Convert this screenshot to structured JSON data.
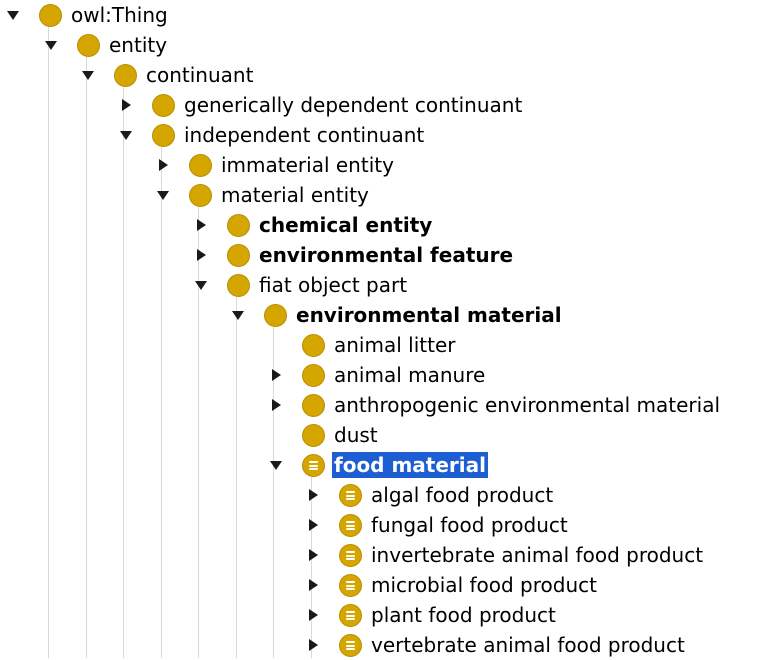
{
  "colors": {
    "class_icon": "#d5a500",
    "selection_background": "#1d5fd2",
    "selection_text": "#ffffff",
    "tree_lines": "#d9d9d9"
  },
  "tree": {
    "nodes": [
      {
        "label": "owl:Thing",
        "depth": 0,
        "toggle": "expanded",
        "icon": "class-icon",
        "bold": false,
        "selected": false
      },
      {
        "label": "entity",
        "depth": 1,
        "toggle": "expanded",
        "icon": "class-icon",
        "bold": false,
        "selected": false
      },
      {
        "label": "continuant",
        "depth": 2,
        "toggle": "expanded",
        "icon": "class-icon",
        "bold": false,
        "selected": false
      },
      {
        "label": "generically dependent continuant",
        "depth": 3,
        "toggle": "collapsed",
        "icon": "class-icon",
        "bold": false,
        "selected": false
      },
      {
        "label": "independent continuant",
        "depth": 3,
        "toggle": "expanded",
        "icon": "class-icon",
        "bold": false,
        "selected": false
      },
      {
        "label": "immaterial entity",
        "depth": 4,
        "toggle": "collapsed",
        "icon": "class-icon",
        "bold": false,
        "selected": false
      },
      {
        "label": "material entity",
        "depth": 4,
        "toggle": "expanded",
        "icon": "class-icon",
        "bold": false,
        "selected": false
      },
      {
        "label": "chemical entity",
        "depth": 5,
        "toggle": "collapsed",
        "icon": "class-icon",
        "bold": true,
        "selected": false
      },
      {
        "label": "environmental feature",
        "depth": 5,
        "toggle": "collapsed",
        "icon": "class-icon",
        "bold": true,
        "selected": false
      },
      {
        "label": "fiat object part",
        "depth": 5,
        "toggle": "expanded",
        "icon": "class-icon",
        "bold": false,
        "selected": false
      },
      {
        "label": "environmental material",
        "depth": 6,
        "toggle": "expanded",
        "icon": "class-icon",
        "bold": true,
        "selected": false
      },
      {
        "label": "animal litter",
        "depth": 7,
        "toggle": "none",
        "icon": "class-icon",
        "bold": false,
        "selected": false
      },
      {
        "label": "animal manure",
        "depth": 7,
        "toggle": "collapsed",
        "icon": "class-icon",
        "bold": false,
        "selected": false
      },
      {
        "label": "anthropogenic environmental material",
        "depth": 7,
        "toggle": "collapsed",
        "icon": "class-icon",
        "bold": false,
        "selected": false
      },
      {
        "label": "dust",
        "depth": 7,
        "toggle": "none",
        "icon": "class-icon",
        "bold": false,
        "selected": false
      },
      {
        "label": "food material",
        "depth": 7,
        "toggle": "expanded",
        "icon": "defined-class-icon",
        "bold": true,
        "selected": true
      },
      {
        "label": "algal food product",
        "depth": 8,
        "toggle": "collapsed",
        "icon": "defined-class-icon",
        "bold": false,
        "selected": false
      },
      {
        "label": "fungal food product",
        "depth": 8,
        "toggle": "collapsed",
        "icon": "defined-class-icon",
        "bold": false,
        "selected": false
      },
      {
        "label": "invertebrate animal food product",
        "depth": 8,
        "toggle": "collapsed",
        "icon": "defined-class-icon",
        "bold": false,
        "selected": false
      },
      {
        "label": "microbial food product",
        "depth": 8,
        "toggle": "collapsed",
        "icon": "defined-class-icon",
        "bold": false,
        "selected": false
      },
      {
        "label": "plant food product",
        "depth": 8,
        "toggle": "collapsed",
        "icon": "defined-class-icon",
        "bold": false,
        "selected": false
      },
      {
        "label": "vertebrate animal food product",
        "depth": 8,
        "toggle": "collapsed",
        "icon": "defined-class-icon",
        "bold": false,
        "selected": false
      }
    ]
  }
}
